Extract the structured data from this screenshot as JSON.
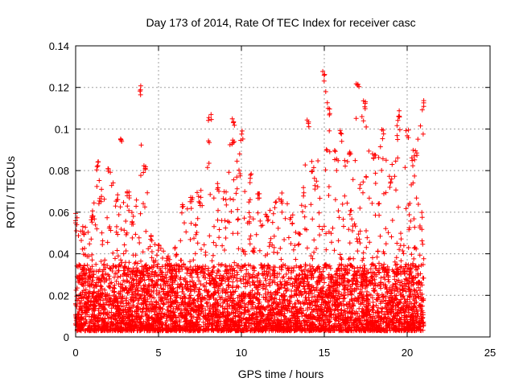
{
  "chart_data": {
    "type": "scatter",
    "title": "Day 173 of 2014, Rate Of TEC Index for receiver casc",
    "xlabel": "GPS time / hours",
    "ylabel": "ROTI / TECUs",
    "xlim": [
      0,
      25
    ],
    "ylim": [
      0,
      0.14
    ],
    "xticks": [
      0,
      5,
      10,
      15,
      20,
      25
    ],
    "yticks": [
      0,
      0.02,
      0.04,
      0.06,
      0.08,
      0.1,
      0.12,
      0.14
    ],
    "xtick_labels": [
      "0",
      "5",
      "10",
      "15",
      "20",
      "25"
    ],
    "ytick_labels": [
      "0",
      "0.02",
      "0.04",
      "0.06",
      "0.08",
      "0.1",
      "0.12",
      "0.14"
    ],
    "grid": true,
    "marker": "+",
    "color": "#ff0000",
    "series": [
      {
        "name": "ROTI",
        "x_range": [
          0,
          21
        ],
        "upper_envelope": [
          [
            0.0,
            0.06
          ],
          [
            0.5,
            0.055
          ],
          [
            1.0,
            0.06
          ],
          [
            1.3,
            0.085
          ],
          [
            1.5,
            0.07
          ],
          [
            2.0,
            0.082
          ],
          [
            2.5,
            0.07
          ],
          [
            2.8,
            0.098
          ],
          [
            3.2,
            0.07
          ],
          [
            3.5,
            0.06
          ],
          [
            3.9,
            0.121
          ],
          [
            4.2,
            0.085
          ],
          [
            4.6,
            0.05
          ],
          [
            5.0,
            0.045
          ],
          [
            5.5,
            0.04
          ],
          [
            6.0,
            0.045
          ],
          [
            6.5,
            0.065
          ],
          [
            7.0,
            0.07
          ],
          [
            7.5,
            0.07
          ],
          [
            8.1,
            0.109
          ],
          [
            8.6,
            0.075
          ],
          [
            9.0,
            0.07
          ],
          [
            9.5,
            0.107
          ],
          [
            10.0,
            0.1
          ],
          [
            10.5,
            0.08
          ],
          [
            11.0,
            0.07
          ],
          [
            11.5,
            0.06
          ],
          [
            12.0,
            0.065
          ],
          [
            12.5,
            0.07
          ],
          [
            13.0,
            0.06
          ],
          [
            13.5,
            0.05
          ],
          [
            14.0,
            0.105
          ],
          [
            14.5,
            0.075
          ],
          [
            15.0,
            0.129
          ],
          [
            15.3,
            0.11
          ],
          [
            15.7,
            0.09
          ],
          [
            16.0,
            0.1
          ],
          [
            16.5,
            0.09
          ],
          [
            17.0,
            0.126
          ],
          [
            17.4,
            0.115
          ],
          [
            18.0,
            0.09
          ],
          [
            18.5,
            0.1
          ],
          [
            19.0,
            0.08
          ],
          [
            19.5,
            0.11
          ],
          [
            20.0,
            0.1
          ],
          [
            20.5,
            0.09
          ],
          [
            21.0,
            0.115
          ]
        ],
        "dense_range": [
          0.003,
          0.035
        ]
      }
    ]
  }
}
